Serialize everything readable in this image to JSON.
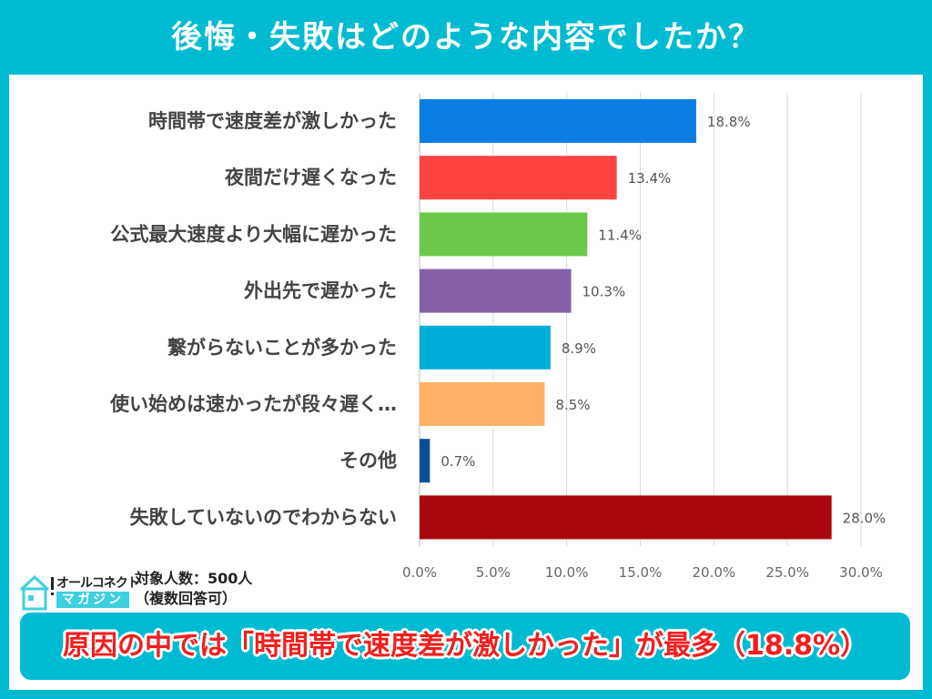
{
  "title": "後悔・失敗はどのような内容でしたか？",
  "chart_data": {
    "type": "bar",
    "orientation": "horizontal",
    "categories": [
      "時間帯で速度差が激しかった",
      "夜間だけ遅くなった",
      "公式最大速度より大幅に遅かった",
      "外出先で遅かった",
      "繋がらないことが多かった",
      "使い始めは速かったが段々遅く…",
      "その他",
      "失敗していないのでわからない"
    ],
    "values": [
      18.8,
      13.4,
      11.4,
      10.3,
      8.9,
      8.5,
      0.7,
      28.0
    ],
    "value_labels": [
      "18.8%",
      "13.4%",
      "11.4%",
      "10.3%",
      "8.9%",
      "8.5%",
      "0.7%",
      "28.0%"
    ],
    "colors": [
      "#0a7de3",
      "#ff4340",
      "#6cc84a",
      "#8461a8",
      "#00afd8",
      "#ffb064",
      "#0a4f96",
      "#a8070c"
    ],
    "xlim": [
      0,
      30
    ],
    "x_ticks": [
      "0.0%",
      "5.0%",
      "10.0%",
      "15.0%",
      "20.0%",
      "25.0%",
      "30.0%"
    ],
    "grid": true
  },
  "logo": {
    "name": "オールコネクト",
    "sub": "マガジン"
  },
  "sample": {
    "line1": "対象人数：500人",
    "line2": "（複数回答可）"
  },
  "banner": "原因の中では「時間帯で速度差が激しかった」が最多（18.8%）"
}
